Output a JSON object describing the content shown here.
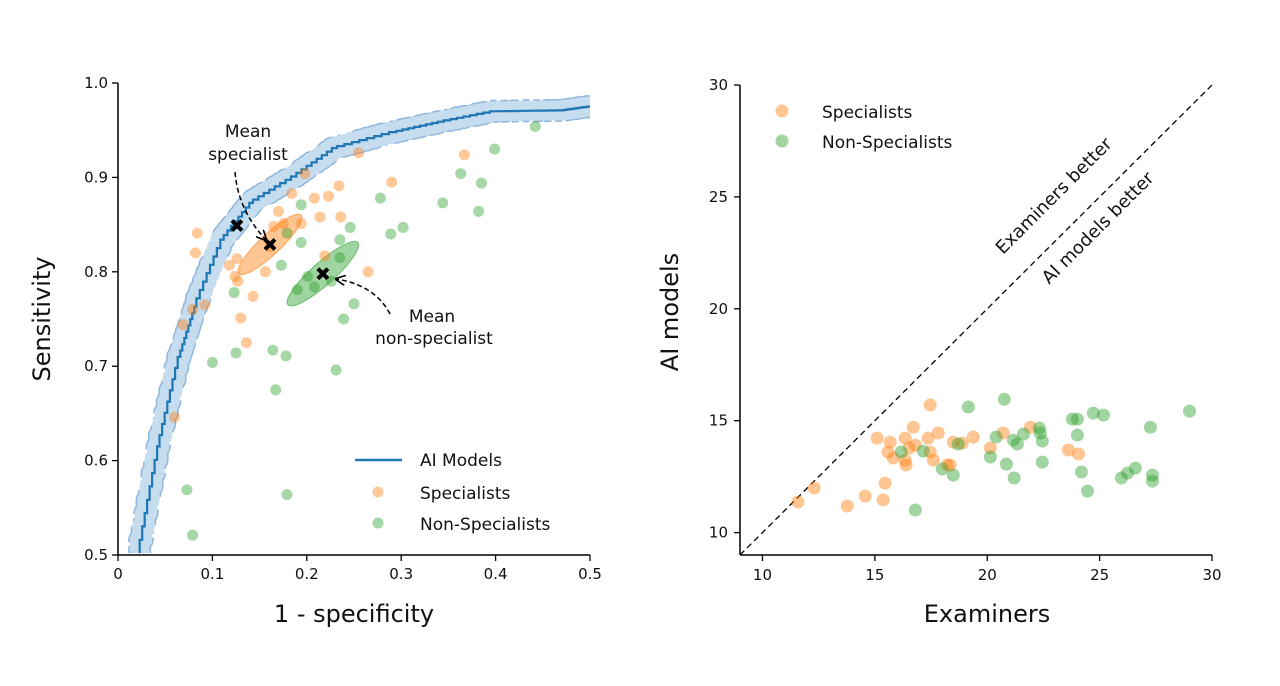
{
  "chart_data": [
    {
      "type": "scatter",
      "xlabel": "1 - specificity",
      "ylabel": "Sensitivity",
      "xlim": [
        0,
        0.5
      ],
      "ylim": [
        0.5,
        1.0
      ],
      "x_ticks": [
        "0",
        "0.1",
        "0.2",
        "0.3",
        "0.4",
        "0.5"
      ],
      "y_ticks": [
        "0.5",
        "0.6",
        "0.7",
        "0.8",
        "0.9",
        "1.0"
      ],
      "grid": false,
      "legend_placement": "bottom-right",
      "legend": [
        "AI Models",
        "Specialists",
        "Non-Specialists"
      ],
      "colors": {
        "ai_models": "#1f77b4",
        "band": "#c6dcef",
        "specialists": "#ff7f0e",
        "non_specialists": "#2ca02c"
      },
      "ai_models_curve": [
        [
          0.023,
          0.502
        ],
        [
          0.044,
          0.615
        ],
        [
          0.066,
          0.71
        ],
        [
          0.083,
          0.763
        ],
        [
          0.112,
          0.834
        ],
        [
          0.143,
          0.873
        ],
        [
          0.189,
          0.901
        ],
        [
          0.232,
          0.931
        ],
        [
          0.295,
          0.948
        ],
        [
          0.345,
          0.959
        ],
        [
          0.401,
          0.97
        ],
        [
          0.472,
          0.971
        ],
        [
          0.5,
          0.975
        ]
      ],
      "ai_models_mean": [
        0.126,
        0.849
      ],
      "specialists": [
        [
          0.084,
          0.841
        ],
        [
          0.082,
          0.82
        ],
        [
          0.255,
          0.926
        ],
        [
          0.367,
          0.924
        ],
        [
          0.198,
          0.904
        ],
        [
          0.29,
          0.895
        ],
        [
          0.184,
          0.883
        ],
        [
          0.234,
          0.891
        ],
        [
          0.208,
          0.878
        ],
        [
          0.223,
          0.88
        ],
        [
          0.17,
          0.864
        ],
        [
          0.175,
          0.851
        ],
        [
          0.194,
          0.851
        ],
        [
          0.214,
          0.858
        ],
        [
          0.236,
          0.858
        ],
        [
          0.161,
          0.827
        ],
        [
          0.156,
          0.8
        ],
        [
          0.126,
          0.814
        ],
        [
          0.118,
          0.807
        ],
        [
          0.124,
          0.795
        ],
        [
          0.127,
          0.79
        ],
        [
          0.143,
          0.774
        ],
        [
          0.265,
          0.8
        ],
        [
          0.219,
          0.817
        ],
        [
          0.079,
          0.76
        ],
        [
          0.092,
          0.765
        ],
        [
          0.069,
          0.744
        ],
        [
          0.13,
          0.751
        ],
        [
          0.136,
          0.725
        ],
        [
          0.06,
          0.646
        ],
        [
          0.165,
          0.848
        ]
      ],
      "non_specialists": [
        [
          0.442,
          0.954
        ],
        [
          0.399,
          0.93
        ],
        [
          0.363,
          0.904
        ],
        [
          0.385,
          0.894
        ],
        [
          0.278,
          0.878
        ],
        [
          0.344,
          0.873
        ],
        [
          0.382,
          0.864
        ],
        [
          0.194,
          0.871
        ],
        [
          0.246,
          0.847
        ],
        [
          0.289,
          0.84
        ],
        [
          0.302,
          0.847
        ],
        [
          0.194,
          0.831
        ],
        [
          0.235,
          0.834
        ],
        [
          0.179,
          0.841
        ],
        [
          0.173,
          0.807
        ],
        [
          0.235,
          0.815
        ],
        [
          0.19,
          0.781
        ],
        [
          0.208,
          0.784
        ],
        [
          0.201,
          0.795
        ],
        [
          0.226,
          0.79
        ],
        [
          0.25,
          0.766
        ],
        [
          0.239,
          0.75
        ],
        [
          0.123,
          0.778
        ],
        [
          0.1,
          0.704
        ],
        [
          0.125,
          0.714
        ],
        [
          0.164,
          0.717
        ],
        [
          0.178,
          0.711
        ],
        [
          0.231,
          0.696
        ],
        [
          0.167,
          0.675
        ],
        [
          0.073,
          0.569
        ],
        [
          0.179,
          0.564
        ],
        [
          0.079,
          0.521
        ]
      ],
      "mean_specialist": [
        0.161,
        0.829
      ],
      "mean_non_specialist": [
        0.217,
        0.798
      ],
      "ellipses": [
        {
          "group": "Specialists",
          "center": [
            0.161,
            0.829
          ],
          "major_end": [
            0.194,
            0.86
          ],
          "minor_half": 0.011
        },
        {
          "group": "Non-Specialists",
          "center": [
            0.217,
            0.798
          ],
          "major_end": [
            0.254,
            0.831
          ],
          "minor_half": 0.012
        }
      ],
      "annotations": {
        "mean_specialist": [
          "Mean",
          "specialist"
        ],
        "mean_non_specialist": [
          "Mean",
          "non-specialist"
        ]
      }
    },
    {
      "type": "scatter",
      "xlabel": "Examiners",
      "ylabel": "AI models",
      "xlim": [
        9,
        30
      ],
      "ylim": [
        9,
        30
      ],
      "x_ticks": [
        "10",
        "15",
        "20",
        "25",
        "30"
      ],
      "y_ticks": [
        "10",
        "15",
        "20",
        "25",
        "30"
      ],
      "grid": false,
      "legend_placement": "top-left",
      "legend": [
        "Specialists",
        "Non-Specialists"
      ],
      "colors": {
        "specialists": "#ff7f0e",
        "non_specialists": "#2ca02c",
        "diagonal": "#000000"
      },
      "diagonal_labels": [
        "Examiners better",
        "AI models better"
      ],
      "specialists": [
        [
          11.58,
          11.37
        ],
        [
          12.3,
          11.99
        ],
        [
          13.77,
          11.19
        ],
        [
          14.57,
          11.63
        ],
        [
          15.37,
          11.46
        ],
        [
          15.46,
          12.21
        ],
        [
          15.1,
          14.22
        ],
        [
          15.68,
          14.04
        ],
        [
          15.59,
          13.6
        ],
        [
          15.82,
          13.33
        ],
        [
          16.35,
          14.22
        ],
        [
          16.39,
          13.02
        ],
        [
          16.35,
          13.24
        ],
        [
          16.71,
          14.71
        ],
        [
          16.8,
          13.91
        ],
        [
          16.53,
          13.78
        ],
        [
          17.37,
          14.22
        ],
        [
          17.46,
          15.7
        ],
        [
          17.46,
          13.6
        ],
        [
          17.6,
          13.24
        ],
        [
          17.82,
          14.45
        ],
        [
          18.22,
          13.02
        ],
        [
          18.35,
          13.02
        ],
        [
          18.49,
          14.04
        ],
        [
          18.89,
          14.0
        ],
        [
          19.38,
          14.27
        ],
        [
          20.14,
          13.78
        ],
        [
          20.71,
          14.45
        ],
        [
          21.92,
          14.71
        ],
        [
          23.61,
          13.69
        ],
        [
          24.06,
          13.51
        ]
      ],
      "non_specialists": [
        [
          16.8,
          11.01
        ],
        [
          16.17,
          13.6
        ],
        [
          17.15,
          13.64
        ],
        [
          18.0,
          12.84
        ],
        [
          18.49,
          12.57
        ],
        [
          18.71,
          13.96
        ],
        [
          19.16,
          15.61
        ],
        [
          20.14,
          13.38
        ],
        [
          20.4,
          14.27
        ],
        [
          20.76,
          15.96
        ],
        [
          20.85,
          13.06
        ],
        [
          21.2,
          12.44
        ],
        [
          21.16,
          14.13
        ],
        [
          21.34,
          13.96
        ],
        [
          21.61,
          14.4
        ],
        [
          22.32,
          14.67
        ],
        [
          22.36,
          14.45
        ],
        [
          22.45,
          14.09
        ],
        [
          22.45,
          13.15
        ],
        [
          23.79,
          15.07
        ],
        [
          24.01,
          15.07
        ],
        [
          24.01,
          14.36
        ],
        [
          24.19,
          12.71
        ],
        [
          24.46,
          11.86
        ],
        [
          24.72,
          15.34
        ],
        [
          25.17,
          15.25
        ],
        [
          25.97,
          12.44
        ],
        [
          26.24,
          12.66
        ],
        [
          26.59,
          12.88
        ],
        [
          27.26,
          14.71
        ],
        [
          27.35,
          12.57
        ],
        [
          27.35,
          12.3
        ],
        [
          29.0,
          15.43
        ]
      ]
    }
  ]
}
